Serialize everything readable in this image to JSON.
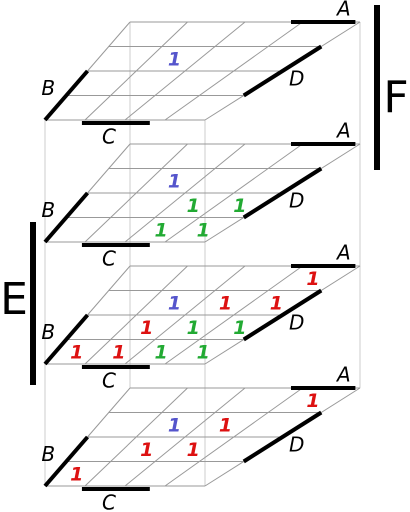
{
  "labels": {
    "e": "E",
    "f": "F"
  },
  "layers": [
    {
      "labels": {
        "a": "A",
        "b": "B",
        "c": "C",
        "d": "D"
      },
      "cells": [
        [
          null,
          null,
          null,
          null
        ],
        [
          null,
          {
            "text": "1",
            "color": "#5555cc"
          },
          null,
          null
        ],
        [
          null,
          null,
          null,
          null
        ],
        [
          null,
          null,
          null,
          null
        ]
      ]
    },
    {
      "labels": {
        "a": "A",
        "b": "B",
        "c": "C",
        "d": "D"
      },
      "cells": [
        [
          null,
          null,
          null,
          null
        ],
        [
          null,
          {
            "text": "1",
            "color": "#5555cc"
          },
          null,
          null
        ],
        [
          null,
          null,
          {
            "text": "1",
            "color": "#22aa33"
          },
          {
            "text": "1",
            "color": "#22aa33"
          }
        ],
        [
          null,
          null,
          {
            "text": "1",
            "color": "#22aa33"
          },
          {
            "text": "1",
            "color": "#22aa33"
          }
        ]
      ]
    },
    {
      "labels": {
        "a": "A",
        "b": "B",
        "c": "C",
        "d": "D"
      },
      "cells": [
        [
          null,
          null,
          null,
          {
            "text": "1",
            "color": "#dd1111"
          }
        ],
        [
          null,
          {
            "text": "1",
            "color": "#5555cc"
          },
          {
            "text": "1",
            "color": "#dd1111"
          },
          {
            "text": "1",
            "color": "#dd1111"
          }
        ],
        [
          null,
          {
            "text": "1",
            "color": "#dd1111"
          },
          {
            "text": "1",
            "color": "#22aa33"
          },
          {
            "text": "1",
            "color": "#22aa33"
          }
        ],
        [
          {
            "text": "1",
            "color": "#dd1111"
          },
          {
            "text": "1",
            "color": "#dd1111"
          },
          {
            "text": "1",
            "color": "#22aa33"
          },
          {
            "text": "1",
            "color": "#22aa33"
          }
        ]
      ]
    },
    {
      "labels": {
        "a": "A",
        "b": "B",
        "c": "C",
        "d": "D"
      },
      "cells": [
        [
          null,
          null,
          null,
          {
            "text": "1",
            "color": "#dd1111"
          }
        ],
        [
          null,
          {
            "text": "1",
            "color": "#5555cc"
          },
          {
            "text": "1",
            "color": "#dd1111"
          },
          null
        ],
        [
          null,
          {
            "text": "1",
            "color": "#dd1111"
          },
          {
            "text": "1",
            "color": "#dd1111"
          },
          null
        ],
        [
          {
            "text": "1",
            "color": "#dd1111"
          },
          null,
          null,
          null
        ]
      ]
    }
  ]
}
